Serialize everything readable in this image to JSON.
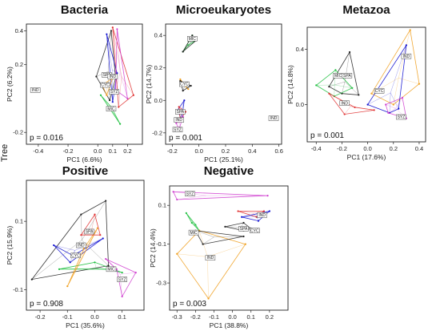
{
  "side_label": "Tree",
  "group_colors": {
    "SPA": "#222222",
    "CYC": "#f0a020",
    "SYZ": "#d040d0",
    "IND": "#1010d0",
    "MIC": "#20c040",
    "EXTRA": "#e03030"
  },
  "chart_data": [
    {
      "type": "scatter",
      "title": "Bacteria",
      "xlabel": "PC1 (6.6%)",
      "ylabel": "PC2 (6.2%)",
      "xlim": [
        -0.48,
        0.3
      ],
      "ylim": [
        -0.27,
        0.44
      ],
      "xticks": [
        "-0.4",
        "-0.2",
        "0.0",
        "0.1",
        "0.2"
      ],
      "xtick_values": [
        -0.4,
        -0.2,
        0.0,
        0.1,
        0.2
      ],
      "yticks": [
        "0.4",
        "0.2",
        "-0.2"
      ],
      "ytick_values": [
        0.4,
        0.2,
        -0.2
      ],
      "p_value": "p = 0.016",
      "hulls": [
        {
          "group": "SPA",
          "points": [
            [
              -0.01,
              0.13
            ],
            [
              0.09,
              0.4
            ],
            [
              0.12,
              0.12
            ],
            [
              0.08,
              -0.01
            ]
          ]
        },
        {
          "group": "EXTRA",
          "points": [
            [
              0.1,
              0.42
            ],
            [
              0.24,
              0.02
            ],
            [
              0.14,
              -0.05
            ]
          ]
        },
        {
          "group": "IND",
          "points": [
            [
              0.06,
              0.38
            ],
            [
              0.13,
              0.15
            ],
            [
              0.1,
              -0.02
            ]
          ]
        },
        {
          "group": "SYZ",
          "points": [
            [
              0.13,
              0.41
            ],
            [
              0.2,
              0.0
            ],
            [
              0.12,
              0.05
            ]
          ]
        },
        {
          "group": "MIC",
          "points": [
            [
              0.02,
              0.02
            ],
            [
              0.09,
              -0.05
            ],
            [
              0.15,
              -0.15
            ]
          ]
        },
        {
          "group": "CYC",
          "points": [
            [
              0.03,
              0.08
            ],
            [
              0.1,
              0.12
            ],
            [
              0.06,
              0.02
            ]
          ]
        }
      ],
      "labels": [
        {
          "text": "IND",
          "x": -0.42,
          "y": 0.05
        },
        {
          "text": "SPA",
          "x": 0.06,
          "y": 0.14
        },
        {
          "text": "IND",
          "x": 0.1,
          "y": 0.13
        },
        {
          "text": "CYC",
          "x": 0.05,
          "y": 0.08
        },
        {
          "text": "SYZ",
          "x": 0.11,
          "y": 0.04
        },
        {
          "text": "MIC",
          "x": 0.09,
          "y": -0.06
        }
      ]
    },
    {
      "type": "scatter",
      "title": "Microeukaryotes",
      "xlabel": "PC1 (25.1%)",
      "ylabel": "PC2 (14.7%)",
      "xlim": [
        -0.25,
        0.62
      ],
      "ylim": [
        -0.27,
        0.47
      ],
      "xticks": [
        "-0.2",
        "0.0",
        "0.2",
        "0.4",
        "0.6"
      ],
      "xtick_values": [
        -0.2,
        0.0,
        0.2,
        0.4,
        0.6
      ],
      "yticks": [
        "0.4",
        "0.2",
        "0.0",
        "-0.2"
      ],
      "ytick_values": [
        0.4,
        0.2,
        0.0,
        -0.2
      ],
      "p_value": "p = 0.001",
      "hulls": [
        {
          "group": "MIC",
          "points": [
            [
              -0.12,
              0.3
            ],
            [
              -0.05,
              0.4
            ],
            [
              -0.02,
              0.37
            ],
            [
              -0.08,
              0.34
            ]
          ]
        },
        {
          "group": "SPA",
          "points": [
            [
              -0.12,
              0.3
            ],
            [
              -0.05,
              0.4
            ],
            [
              -0.02,
              0.37
            ]
          ]
        },
        {
          "group": "CYC",
          "points": [
            [
              -0.14,
              0.13
            ],
            [
              -0.08,
              0.07
            ],
            [
              -0.11,
              0.09
            ]
          ]
        },
        {
          "group": "SPA",
          "points": [
            [
              -0.14,
              0.12
            ],
            [
              -0.06,
              0.09
            ],
            [
              -0.12,
              0.06
            ]
          ]
        },
        {
          "group": "IND",
          "points": [
            [
              -0.16,
              -0.06
            ],
            [
              -0.11,
              0.0
            ],
            [
              -0.13,
              -0.12
            ]
          ]
        },
        {
          "group": "EXTRA",
          "points": [
            [
              -0.15,
              -0.04
            ],
            [
              -0.1,
              -0.07
            ],
            [
              -0.14,
              -0.12
            ]
          ]
        },
        {
          "group": "SYZ",
          "points": [
            [
              -0.17,
              -0.14
            ],
            [
              -0.12,
              -0.1
            ],
            [
              -0.15,
              -0.18
            ]
          ]
        }
      ],
      "labels": [
        {
          "text": "MIC",
          "x": -0.05,
          "y": 0.38
        },
        {
          "text": "CYC",
          "x": -0.11,
          "y": 0.1
        },
        {
          "text": "SPA",
          "x": -0.14,
          "y": -0.07
        },
        {
          "text": "IND",
          "x": -0.15,
          "y": -0.12
        },
        {
          "text": "SYZ",
          "x": -0.16,
          "y": -0.18
        },
        {
          "text": "IND",
          "x": 0.56,
          "y": -0.11
        }
      ]
    },
    {
      "type": "scatter",
      "title": "Metazoa",
      "xlabel": "PC1 (17.6%)",
      "ylabel": "PC2 (14.8%)",
      "xlim": [
        -0.47,
        0.45
      ],
      "ylim": [
        -0.27,
        0.56
      ],
      "xticks": [
        "-0.4",
        "-0.2",
        "0.0",
        "0.2",
        "0.4"
      ],
      "xtick_values": [
        -0.4,
        -0.2,
        0.0,
        0.2,
        0.4
      ],
      "yticks": [
        "0.4",
        "0.0"
      ],
      "ytick_values": [
        0.4,
        0.0
      ],
      "p_value": "p = 0.001",
      "hulls": [
        {
          "group": "SPA",
          "points": [
            [
              -0.3,
              0.13
            ],
            [
              -0.14,
              0.38
            ],
            [
              -0.07,
              0.07
            ],
            [
              -0.2,
              0.08
            ]
          ]
        },
        {
          "group": "MIC",
          "points": [
            [
              -0.4,
              0.14
            ],
            [
              -0.25,
              0.25
            ],
            [
              -0.12,
              0.12
            ],
            [
              -0.26,
              0.06
            ]
          ]
        },
        {
          "group": "CYC",
          "points": [
            [
              0.03,
              0.08
            ],
            [
              0.33,
              0.54
            ],
            [
              0.4,
              0.15
            ],
            [
              0.2,
              0.0
            ]
          ]
        },
        {
          "group": "IND",
          "points": [
            [
              0.0,
              0.0
            ],
            [
              0.3,
              0.43
            ],
            [
              0.24,
              -0.03
            ],
            [
              0.17,
              -0.06
            ]
          ]
        },
        {
          "group": "SYZ",
          "points": [
            [
              0.14,
              0.0
            ],
            [
              0.27,
              0.05
            ],
            [
              0.3,
              -0.1
            ],
            [
              0.16,
              -0.06
            ]
          ]
        },
        {
          "group": "EXTRA",
          "points": [
            [
              -0.3,
              0.08
            ],
            [
              -0.1,
              -0.02
            ],
            [
              0.05,
              -0.04
            ],
            [
              -0.18,
              -0.07
            ]
          ]
        }
      ],
      "labels": [
        {
          "text": "IND",
          "x": 0.3,
          "y": 0.35
        },
        {
          "text": "MIC",
          "x": -0.23,
          "y": 0.21
        },
        {
          "text": "SPA",
          "x": -0.16,
          "y": 0.21
        },
        {
          "text": "CYC",
          "x": 0.09,
          "y": 0.1
        },
        {
          "text": "IND",
          "x": -0.18,
          "y": 0.01
        },
        {
          "text": "SYZ",
          "x": 0.26,
          "y": -0.09
        }
      ]
    },
    {
      "type": "scatter",
      "title": "Positive",
      "xlabel": "PC1 (35.6%)",
      "ylabel": "PC2 (15.9%)",
      "xlim": [
        -0.25,
        0.18
      ],
      "ylim": [
        -0.16,
        0.22
      ],
      "xticks": [
        "-0.2",
        "-0.1",
        "0.0",
        "0.1"
      ],
      "xtick_values": [
        -0.2,
        -0.1,
        0.0,
        0.1
      ],
      "yticks": [
        "0.1",
        "-0.1"
      ],
      "ytick_values": [
        0.1,
        -0.1
      ],
      "p_value": "p = 0.908",
      "hulls": [
        {
          "group": "SPA",
          "points": [
            [
              -0.23,
              -0.07
            ],
            [
              -0.05,
              0.12
            ],
            [
              0.04,
              0.16
            ],
            [
              0.05,
              -0.03
            ]
          ]
        },
        {
          "group": "IND",
          "points": [
            [
              -0.15,
              0.03
            ],
            [
              -0.08,
              0.0
            ],
            [
              0.03,
              0.05
            ],
            [
              -0.09,
              -0.02
            ]
          ]
        },
        {
          "group": "MIC",
          "points": [
            [
              -0.13,
              -0.04
            ],
            [
              0.05,
              -0.04
            ],
            [
              0.1,
              -0.05
            ],
            [
              0.0,
              -0.02
            ]
          ]
        },
        {
          "group": "CYC",
          "points": [
            [
              -0.1,
              -0.09
            ],
            [
              -0.04,
              0.02
            ],
            [
              0.01,
              0.08
            ]
          ]
        },
        {
          "group": "SYZ",
          "points": [
            [
              0.04,
              -0.01
            ],
            [
              0.15,
              -0.05
            ],
            [
              0.1,
              -0.12
            ],
            [
              0.08,
              -0.04
            ]
          ]
        },
        {
          "group": "EXTRA",
          "points": [
            [
              -0.05,
              0.06
            ],
            [
              0.0,
              0.12
            ],
            [
              0.02,
              0.06
            ]
          ]
        }
      ],
      "labels": [
        {
          "text": "SPA",
          "x": -0.02,
          "y": 0.07
        },
        {
          "text": "IND",
          "x": -0.05,
          "y": 0.03
        },
        {
          "text": "CYC",
          "x": -0.07,
          "y": -0.0
        },
        {
          "text": "MIC",
          "x": 0.06,
          "y": -0.04
        },
        {
          "text": "SYZ",
          "x": 0.1,
          "y": -0.07
        }
      ]
    },
    {
      "type": "scatter",
      "title": "Negative",
      "xlabel": "PC1 (38.8%)",
      "ylabel": "PC2 (14.4%)",
      "xlim": [
        -0.34,
        0.3
      ],
      "ylim": [
        -0.44,
        0.2
      ],
      "xticks": [
        "-0.3",
        "-0.2",
        "-0.1",
        "0.0",
        "0.1",
        "0.2"
      ],
      "xtick_values": [
        -0.3,
        -0.2,
        -0.1,
        0.0,
        0.1,
        0.2
      ],
      "yticks": [
        "0.1",
        "-0.1",
        "-0.3"
      ],
      "ytick_values": [
        0.1,
        -0.1,
        -0.3
      ],
      "p_value": "p = 0.003",
      "hulls": [
        {
          "group": "SYZ",
          "points": [
            [
              -0.32,
              0.17
            ],
            [
              0.19,
              0.15
            ],
            [
              -0.3,
              0.13
            ]
          ]
        },
        {
          "group": "EXTRA",
          "points": [
            [
              0.03,
              0.07
            ],
            [
              0.17,
              0.07
            ],
            [
              0.13,
              0.04
            ]
          ]
        },
        {
          "group": "IND",
          "points": [
            [
              0.05,
              0.04
            ],
            [
              0.2,
              0.07
            ],
            [
              0.14,
              0.02
            ]
          ]
        },
        {
          "group": "MIC",
          "points": [
            [
              -0.25,
              0.06
            ],
            [
              -0.2,
              0.0
            ],
            [
              -0.18,
              -0.03
            ],
            [
              -0.22,
              0.01
            ]
          ]
        },
        {
          "group": "SPA",
          "points": [
            [
              -0.04,
              -0.01
            ],
            [
              0.06,
              0.01
            ],
            [
              0.1,
              -0.02
            ],
            [
              0.06,
              -0.03
            ]
          ]
        },
        {
          "group": "CYC",
          "points": [
            [
              -0.3,
              -0.15
            ],
            [
              -0.18,
              -0.03
            ],
            [
              0.07,
              -0.1
            ],
            [
              -0.13,
              -0.38
            ]
          ]
        },
        {
          "group": "SPA",
          "points": [
            [
              -0.2,
              -0.03
            ],
            [
              0.06,
              -0.06
            ],
            [
              -0.16,
              -0.1
            ]
          ]
        }
      ],
      "labels": [
        {
          "text": "SYZ",
          "x": -0.23,
          "y": 0.16
        },
        {
          "text": "IND",
          "x": 0.16,
          "y": 0.05
        },
        {
          "text": "SPA",
          "x": 0.06,
          "y": -0.02
        },
        {
          "text": "CYC",
          "x": 0.12,
          "y": -0.03
        },
        {
          "text": "MIC",
          "x": -0.21,
          "y": -0.04
        },
        {
          "text": "IND",
          "x": -0.12,
          "y": -0.17
        }
      ]
    }
  ]
}
